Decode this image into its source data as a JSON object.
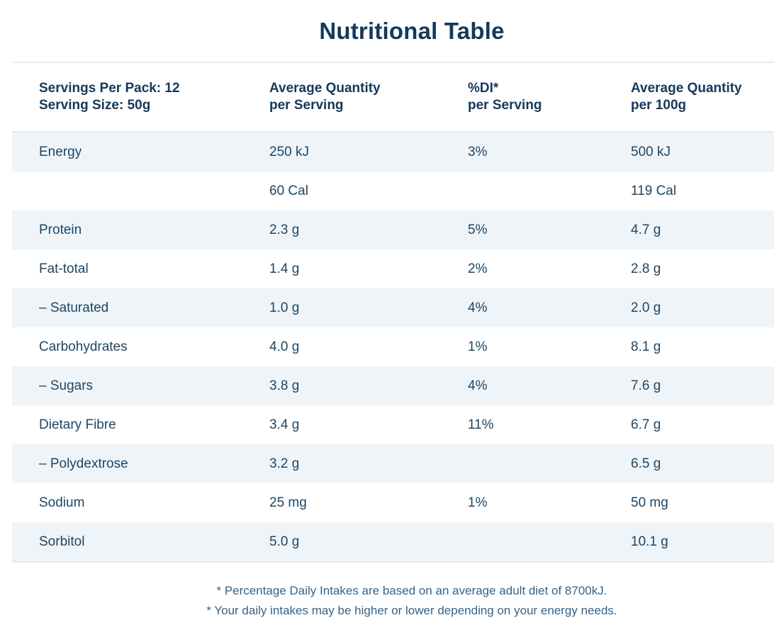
{
  "title": "Nutritional Table",
  "table": {
    "columns": [
      {
        "line1": "Servings Per Pack: 12",
        "line2": "Serving Size: 50g"
      },
      {
        "line1": "Average Quantity",
        "line2": "per Serving"
      },
      {
        "line1": "%DI*",
        "line2": "per Serving"
      },
      {
        "line1": "Average Quantity",
        "line2": "per 100g"
      }
    ],
    "rows": [
      {
        "label": "Energy",
        "per_serving": "250 kJ",
        "di_per_serving": "3%",
        "per_100g": "500 kJ"
      },
      {
        "label": "",
        "per_serving": "60 Cal",
        "di_per_serving": "",
        "per_100g": "119 Cal"
      },
      {
        "label": "Protein",
        "per_serving": "2.3 g",
        "di_per_serving": "5%",
        "per_100g": "4.7 g"
      },
      {
        "label": "Fat-total",
        "per_serving": "1.4 g",
        "di_per_serving": "2%",
        "per_100g": "2.8 g"
      },
      {
        "label": "– Saturated",
        "per_serving": "1.0 g",
        "di_per_serving": "4%",
        "per_100g": "2.0 g"
      },
      {
        "label": "Carbohydrates",
        "per_serving": "4.0 g",
        "di_per_serving": "1%",
        "per_100g": "8.1 g"
      },
      {
        "label": "– Sugars",
        "per_serving": "3.8 g",
        "di_per_serving": "4%",
        "per_100g": "7.6 g"
      },
      {
        "label": "Dietary Fibre",
        "per_serving": "3.4 g",
        "di_per_serving": "11%",
        "per_100g": "6.7 g"
      },
      {
        "label": "– Polydextrose",
        "per_serving": "3.2 g",
        "di_per_serving": "",
        "per_100g": "6.5 g"
      },
      {
        "label": "Sodium",
        "per_serving": "25 mg",
        "di_per_serving": "1%",
        "per_100g": "50 mg"
      },
      {
        "label": "Sorbitol",
        "per_serving": "5.0 g",
        "di_per_serving": "",
        "per_100g": "10.1 g"
      }
    ]
  },
  "footnotes": [
    "* Percentage Daily Intakes are based on an average adult diet of 8700kJ.",
    "* Your daily intakes may be higher or lower depending on your energy needs."
  ],
  "colors": {
    "heading_text": "#14395b",
    "body_text": "#1d4663",
    "footnote_text": "#35638a",
    "row_alternate_background": "#eff4f9",
    "divider": "#e7eaee"
  }
}
